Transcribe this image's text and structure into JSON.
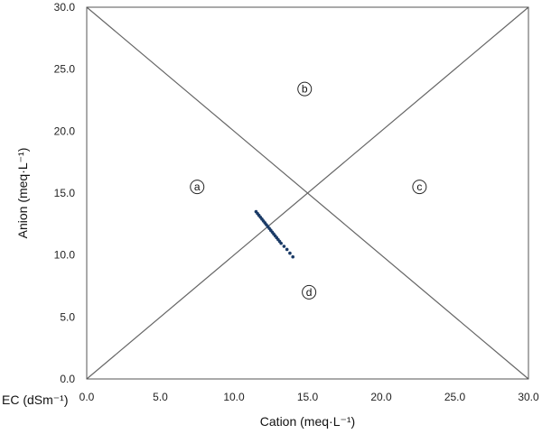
{
  "chart_data": {
    "type": "scatter",
    "xlabel": "Cation (meq·L⁻¹)",
    "ylabel": "Anion (meq·L⁻¹)",
    "corner_label": "EC (dSm⁻¹)",
    "xlim": [
      0,
      30
    ],
    "ylim": [
      0,
      30
    ],
    "xticks": [
      "0.0",
      "5.0",
      "10.0",
      "15.0",
      "20.0",
      "25.0",
      "30.0"
    ],
    "yticks": [
      "0.0",
      "5.0",
      "10.0",
      "15.0",
      "20.0",
      "25.0",
      "30.0"
    ],
    "grid": false,
    "reference_lines": [
      {
        "x": [
          0,
          30
        ],
        "y": [
          0,
          30
        ]
      },
      {
        "x": [
          0,
          30
        ],
        "y": [
          30,
          0
        ]
      }
    ],
    "regions": [
      {
        "label": "a",
        "x": 7.5,
        "y": 15.5
      },
      {
        "label": "b",
        "x": 14.8,
        "y": 23.4
      },
      {
        "label": "c",
        "x": 22.6,
        "y": 15.5
      },
      {
        "label": "d",
        "x": 15.1,
        "y": 7.0
      }
    ],
    "series": [
      {
        "color": "#1a3a66",
        "x": [
          11.5,
          11.6,
          11.7,
          11.8,
          11.9,
          12.0,
          12.1,
          12.2,
          12.3,
          12.4,
          12.5,
          12.6,
          12.7,
          12.8,
          12.9,
          13.0,
          13.1,
          13.2,
          13.4,
          13.6,
          13.8,
          14.0
        ],
        "y": [
          13.5,
          13.35,
          13.2,
          13.05,
          12.9,
          12.75,
          12.6,
          12.45,
          12.3,
          12.15,
          12.0,
          11.85,
          11.7,
          11.55,
          11.4,
          11.25,
          11.1,
          10.95,
          10.7,
          10.45,
          10.15,
          9.85
        ]
      }
    ]
  }
}
